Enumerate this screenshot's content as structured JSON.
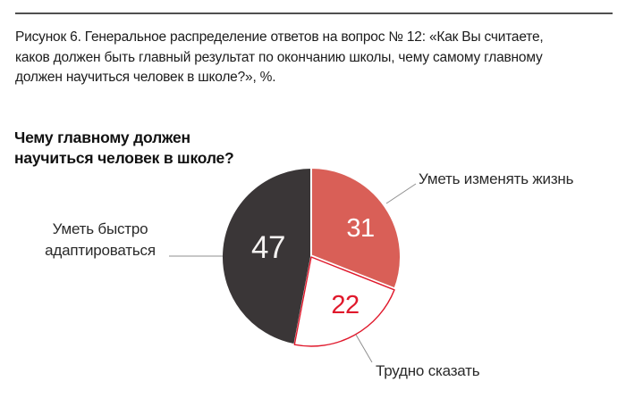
{
  "document": {
    "caption_lines": [
      "Рисунок 6. Генеральное распределение ответов на вопрос № 12: «Как Вы считаете,",
      "каков должен быть главный результат по окончанию школы, чему самому главному",
      "должен научиться человек в школе?», %."
    ]
  },
  "chart_data": {
    "type": "pie",
    "title": "Чему главному должен научиться человек в школе?",
    "units": "%",
    "start_angle_deg": 0,
    "direction": "clockwise",
    "legend_position": "callout-labels",
    "slices": [
      {
        "label": "Уметь изменять жизнь",
        "value": 31,
        "color": "#d95f57",
        "value_color": "#ffffff"
      },
      {
        "label": "Трудно сказать",
        "value": 22,
        "color": "#ffffff",
        "border_color": "#e0192c",
        "value_color": "#e0192c"
      },
      {
        "label": "Уметь быстро адаптироваться",
        "value": 47,
        "color": "#3a3637",
        "value_color": "#f5f3f2"
      }
    ],
    "colors": {
      "accent_red": "#e0192c",
      "salmon": "#d95f57",
      "dark": "#3a3637",
      "leader_line": "#8f8f8f"
    }
  }
}
